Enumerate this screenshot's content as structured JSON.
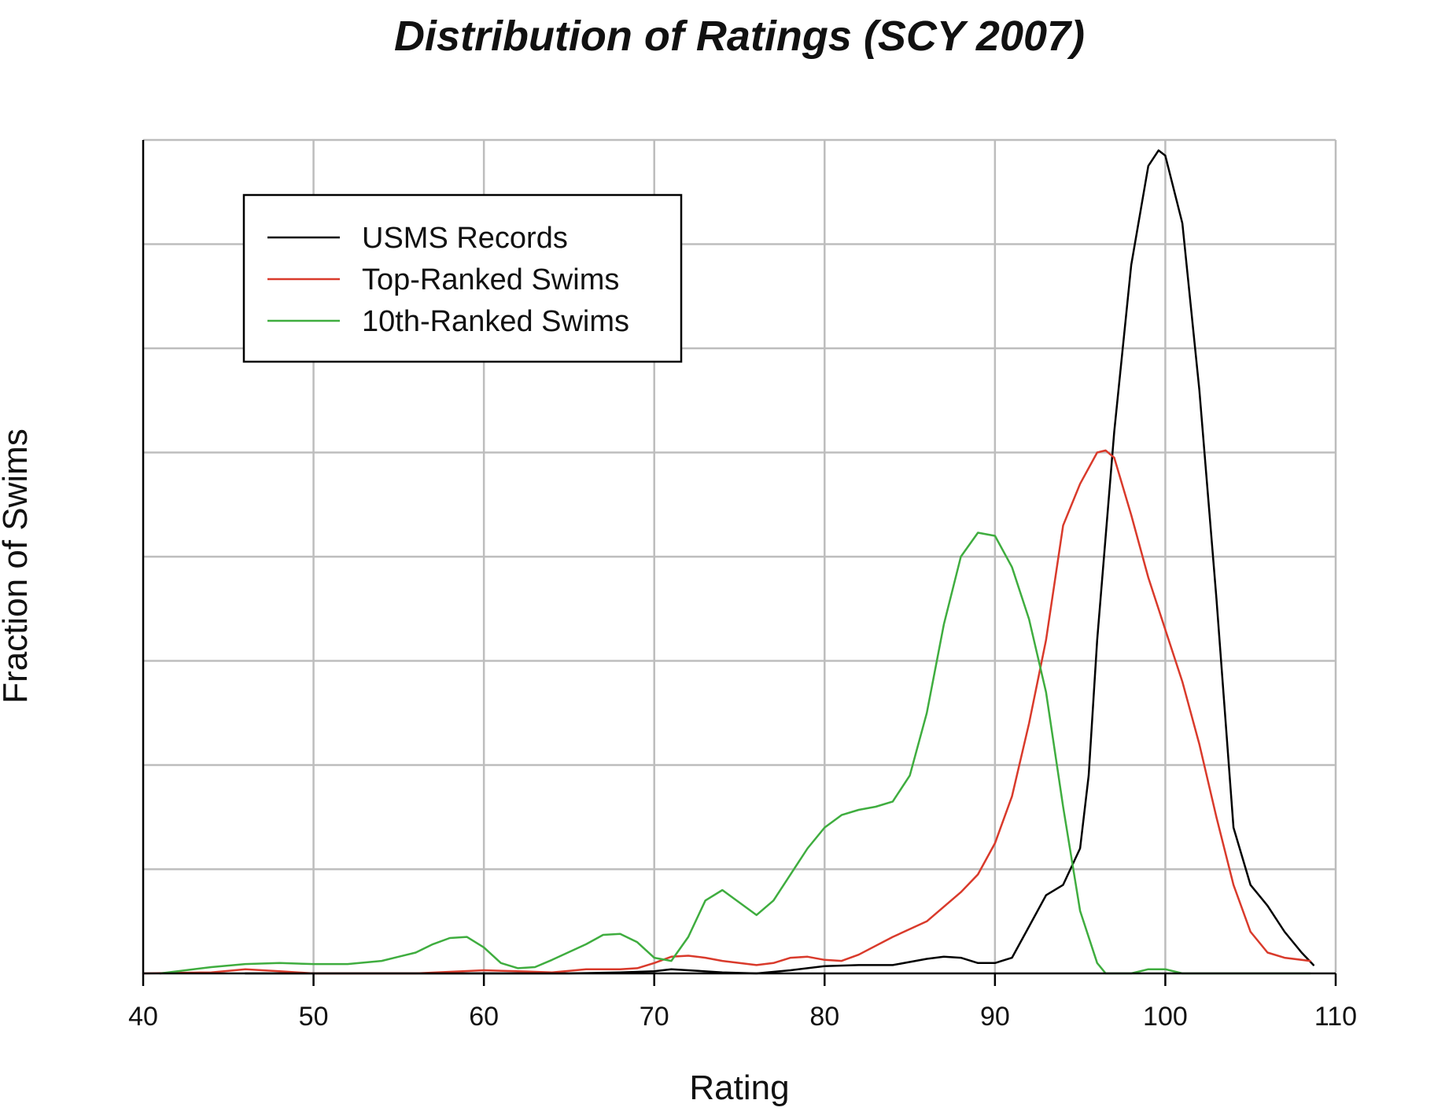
{
  "chart_data": {
    "type": "line",
    "title": "Distribution of Ratings (SCY 2007)",
    "xlabel": "Rating",
    "ylabel": "Fraction of Swims",
    "xlim": [
      40,
      110
    ],
    "ylim": [
      0,
      8
    ],
    "x_ticks": [
      40,
      50,
      60,
      70,
      80,
      90,
      100,
      110
    ],
    "y_gridlines": [
      1,
      2,
      3,
      4,
      5,
      6,
      7
    ],
    "y_tick_labels_shown": false,
    "grid": true,
    "legend_position": "top-left",
    "series": [
      {
        "name": "USMS Records",
        "color": "#000000",
        "points": [
          [
            46,
            0.0
          ],
          [
            50,
            0.0
          ],
          [
            60,
            0.0
          ],
          [
            65,
            0.0
          ],
          [
            68,
            0.01
          ],
          [
            70,
            0.02
          ],
          [
            71,
            0.04
          ],
          [
            72,
            0.03
          ],
          [
            74,
            0.01
          ],
          [
            76,
            0.0
          ],
          [
            78,
            0.03
          ],
          [
            80,
            0.07
          ],
          [
            82,
            0.08
          ],
          [
            84,
            0.08
          ],
          [
            86,
            0.14
          ],
          [
            87,
            0.16
          ],
          [
            88,
            0.15
          ],
          [
            89,
            0.1
          ],
          [
            90,
            0.1
          ],
          [
            91,
            0.15
          ],
          [
            92,
            0.45
          ],
          [
            93,
            0.75
          ],
          [
            94,
            0.85
          ],
          [
            95,
            1.2
          ],
          [
            95.5,
            1.9
          ],
          [
            96,
            3.2
          ],
          [
            97,
            5.2
          ],
          [
            98,
            6.8
          ],
          [
            99,
            7.75
          ],
          [
            99.6,
            7.9
          ],
          [
            100,
            7.85
          ],
          [
            101,
            7.2
          ],
          [
            102,
            5.6
          ],
          [
            103,
            3.6
          ],
          [
            104,
            1.4
          ],
          [
            105,
            0.85
          ],
          [
            106,
            0.65
          ],
          [
            107,
            0.4
          ],
          [
            108,
            0.2
          ],
          [
            108.7,
            0.08
          ]
        ]
      },
      {
        "name": "Top-Ranked Swims",
        "color": "#d93a2b",
        "points": [
          [
            40,
            0.0
          ],
          [
            44,
            0.01
          ],
          [
            46,
            0.04
          ],
          [
            48,
            0.02
          ],
          [
            50,
            0.0
          ],
          [
            56,
            0.0
          ],
          [
            60,
            0.03
          ],
          [
            62,
            0.02
          ],
          [
            64,
            0.01
          ],
          [
            66,
            0.04
          ],
          [
            68,
            0.04
          ],
          [
            69,
            0.05
          ],
          [
            70,
            0.1
          ],
          [
            71,
            0.16
          ],
          [
            72,
            0.17
          ],
          [
            73,
            0.15
          ],
          [
            74,
            0.12
          ],
          [
            76,
            0.08
          ],
          [
            77,
            0.1
          ],
          [
            78,
            0.15
          ],
          [
            79,
            0.16
          ],
          [
            80,
            0.13
          ],
          [
            81,
            0.12
          ],
          [
            82,
            0.18
          ],
          [
            84,
            0.35
          ],
          [
            86,
            0.5
          ],
          [
            88,
            0.78
          ],
          [
            89,
            0.95
          ],
          [
            90,
            1.25
          ],
          [
            91,
            1.7
          ],
          [
            92,
            2.4
          ],
          [
            93,
            3.2
          ],
          [
            94,
            4.3
          ],
          [
            95,
            4.7
          ],
          [
            96,
            5.0
          ],
          [
            96.5,
            5.02
          ],
          [
            97,
            4.95
          ],
          [
            98,
            4.4
          ],
          [
            99,
            3.8
          ],
          [
            100,
            3.3
          ],
          [
            101,
            2.8
          ],
          [
            102,
            2.2
          ],
          [
            103,
            1.5
          ],
          [
            104,
            0.85
          ],
          [
            105,
            0.4
          ],
          [
            106,
            0.2
          ],
          [
            107,
            0.15
          ],
          [
            108.5,
            0.12
          ]
        ]
      },
      {
        "name": "10th-Ranked Swims",
        "color": "#3fad3f",
        "points": [
          [
            41,
            0.0
          ],
          [
            44,
            0.06
          ],
          [
            46,
            0.09
          ],
          [
            48,
            0.1
          ],
          [
            50,
            0.09
          ],
          [
            52,
            0.09
          ],
          [
            54,
            0.12
          ],
          [
            56,
            0.2
          ],
          [
            57,
            0.28
          ],
          [
            58,
            0.34
          ],
          [
            59,
            0.35
          ],
          [
            60,
            0.25
          ],
          [
            61,
            0.1
          ],
          [
            62,
            0.05
          ],
          [
            63,
            0.06
          ],
          [
            64,
            0.13
          ],
          [
            66,
            0.28
          ],
          [
            67,
            0.37
          ],
          [
            68,
            0.38
          ],
          [
            69,
            0.3
          ],
          [
            70,
            0.15
          ],
          [
            71,
            0.12
          ],
          [
            72,
            0.35
          ],
          [
            73,
            0.7
          ],
          [
            74,
            0.8
          ],
          [
            75,
            0.68
          ],
          [
            76,
            0.56
          ],
          [
            77,
            0.7
          ],
          [
            78,
            0.95
          ],
          [
            79,
            1.2
          ],
          [
            80,
            1.4
          ],
          [
            81,
            1.52
          ],
          [
            82,
            1.57
          ],
          [
            83,
            1.6
          ],
          [
            84,
            1.65
          ],
          [
            85,
            1.9
          ],
          [
            86,
            2.5
          ],
          [
            87,
            3.35
          ],
          [
            88,
            4.0
          ],
          [
            89,
            4.23
          ],
          [
            90,
            4.2
          ],
          [
            91,
            3.9
          ],
          [
            92,
            3.4
          ],
          [
            93,
            2.7
          ],
          [
            94,
            1.6
          ],
          [
            95,
            0.6
          ],
          [
            96,
            0.1
          ],
          [
            96.5,
            0.0
          ],
          [
            98,
            0.0
          ],
          [
            99,
            0.04
          ],
          [
            100,
            0.04
          ],
          [
            101,
            0.0
          ],
          [
            108.5,
            0.0
          ]
        ]
      }
    ]
  }
}
